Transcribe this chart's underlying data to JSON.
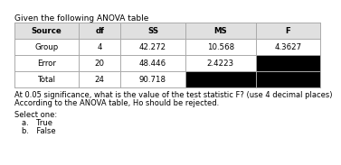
{
  "title": "Given the following ANOVA table",
  "headers": [
    "Source",
    "df",
    "SS",
    "MS",
    "F"
  ],
  "rows": [
    [
      "Group",
      "4",
      "42.272",
      "10.568",
      "4.3627"
    ],
    [
      "Error",
      "20",
      "48.446",
      "2.4223",
      "BLACK"
    ],
    [
      "Total",
      "24",
      "90.718",
      "BLACK",
      "BLACK"
    ]
  ],
  "question_line1": "At 0.05 significance, what is the value of the test statistic F? (use 4 decimal places)",
  "question_line2": "According to the ANOVA table, Ho should be rejected.",
  "select_label": "Select one:",
  "options": [
    "a. True",
    "b. False"
  ],
  "bg_color": "#ffffff",
  "black_cell": "#000000",
  "header_bg": "#e0e0e0",
  "table_border": "#aaaaaa",
  "text_color": "#000000",
  "cell_font_size": 6.2,
  "header_font_size": 6.2,
  "title_font_size": 6.5,
  "body_font_size": 6.0
}
